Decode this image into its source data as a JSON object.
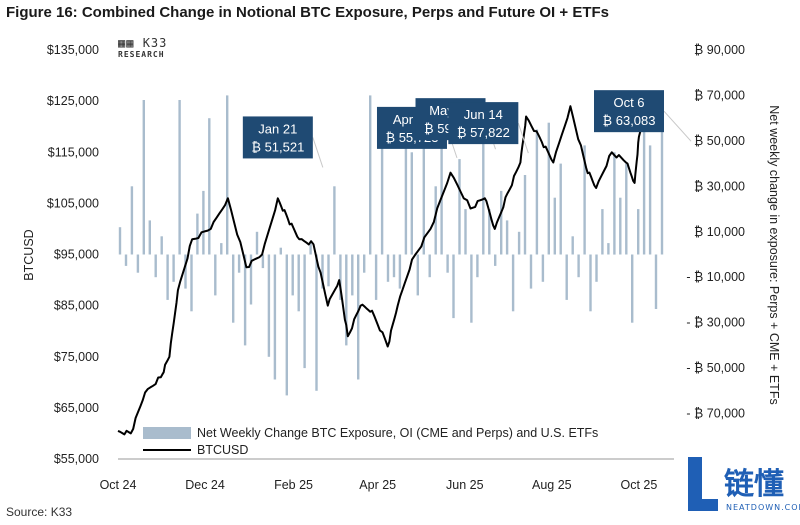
{
  "figure_title": "Figure 16: Combined Change in Notional BTC Exposure, Perps and Future OI + ETFs",
  "source": "Source: K33",
  "logo": {
    "line1": "K33",
    "line2": "RESEARCH"
  },
  "watermark": {
    "chinese": "链懂",
    "url": "NEATDOWN.COM"
  },
  "colors": {
    "bars": "#a9bccd",
    "line": "#000000",
    "callout_bg": "#1f4a73",
    "callout_text": "#ffffff"
  },
  "chart_data": {
    "type": "bar+line",
    "left_axis": {
      "label": "BTCUSD",
      "range": [
        55000,
        135000
      ],
      "ticks": [
        55000,
        65000,
        75000,
        85000,
        95000,
        105000,
        115000,
        125000,
        135000
      ],
      "tick_labels": [
        "$55,000",
        "$65,000",
        "$75,000",
        "$85,000",
        "$95,000",
        "$105,000",
        "$115,000",
        "$125,000",
        "$135,000"
      ]
    },
    "right_axis": {
      "label": "Net weekly change in exposure: Perps + CME + ETFs",
      "range": [
        -90000,
        90000
      ],
      "ticks": [
        -70000,
        -50000,
        -30000,
        -10000,
        10000,
        30000,
        50000,
        70000,
        90000
      ],
      "tick_labels": [
        "- ₿ 70,000",
        "- ₿ 50,000",
        "- ₿ 30,000",
        "- ₿ 10,000",
        "₿ 10,000",
        "₿ 30,000",
        "₿ 50,000",
        "₿ 70,000",
        "₿ 90,000"
      ]
    },
    "x_axis": {
      "range": [
        "2024-10-01",
        "2025-10-20"
      ],
      "tick_labels": [
        "Oct 24",
        "Dec 24",
        "Feb 25",
        "Apr 25",
        "Jun 25",
        "Aug 25",
        "Oct 25"
      ],
      "tick_dates": [
        "2024-10-01",
        "2024-12-01",
        "2025-02-01",
        "2025-04-01",
        "2025-06-01",
        "2025-08-01",
        "2025-10-01"
      ]
    },
    "legend": {
      "position": "bottom-left",
      "entries": [
        "Net Weekly Change BTC Exposure, OI (CME and Perps) and U.S. ETFs",
        "BTCUSD"
      ]
    },
    "grid": false,
    "bar_series": {
      "name": "Net Weekly Change BTC Exposure, OI (CME and Perps) and U.S. ETFs",
      "values": [
        12000,
        -5000,
        30000,
        -8000,
        68000,
        15000,
        -10000,
        8000,
        -20000,
        -12000,
        68000,
        -15000,
        -25000,
        18000,
        28000,
        60000,
        -18000,
        5000,
        70000,
        -30000,
        -8000,
        -40000,
        -22000,
        10000,
        -6000,
        -45000,
        -55000,
        3000,
        -62000,
        -18000,
        -25000,
        -50000,
        5000,
        -60000,
        -15000,
        -14000,
        30000,
        -20000,
        -40000,
        -18000,
        -55000,
        -8000,
        70000,
        -20000,
        62000,
        -12000,
        -10000,
        -15000,
        55000,
        45000,
        -18000,
        64000,
        -10000,
        30000,
        58000,
        -8000,
        -28000,
        42000,
        20000,
        -30000,
        -10000,
        50000,
        20000,
        -5000,
        28000,
        15000,
        -25000,
        10000,
        35000,
        -15000,
        55000,
        -12000,
        58000,
        25000,
        40000,
        -20000,
        8000,
        -10000,
        48000,
        -25000,
        -12000,
        20000,
        5000,
        45000,
        25000,
        40000,
        -30000,
        20000,
        56000,
        48000,
        -24000,
        72000
      ]
    },
    "line_series": {
      "name": "BTCUSD",
      "points": [
        [
          "2024-10-01",
          60500
        ],
        [
          "2024-10-10",
          60000
        ],
        [
          "2024-10-20",
          68000
        ],
        [
          "2024-10-31",
          71000
        ],
        [
          "2024-11-06",
          75000
        ],
        [
          "2024-11-12",
          88000
        ],
        [
          "2024-11-22",
          98000
        ],
        [
          "2024-12-05",
          100000
        ],
        [
          "2024-12-17",
          106000
        ],
        [
          "2024-12-30",
          92500
        ],
        [
          "2025-01-10",
          95000
        ],
        [
          "2025-01-21",
          106000
        ],
        [
          "2025-01-28",
          102000
        ],
        [
          "2025-02-05",
          98000
        ],
        [
          "2025-02-15",
          97000
        ],
        [
          "2025-02-25",
          85000
        ],
        [
          "2025-03-05",
          90000
        ],
        [
          "2025-03-11",
          79000
        ],
        [
          "2025-03-20",
          85000
        ],
        [
          "2025-03-28",
          84000
        ],
        [
          "2025-04-08",
          77000
        ],
        [
          "2025-04-15",
          85000
        ],
        [
          "2025-04-25",
          94000
        ],
        [
          "2025-05-08",
          100000
        ],
        [
          "2025-05-22",
          111000
        ],
        [
          "2025-06-05",
          104000
        ],
        [
          "2025-06-15",
          106000
        ],
        [
          "2025-06-22",
          100000
        ],
        [
          "2025-07-01",
          107000
        ],
        [
          "2025-07-10",
          113000
        ],
        [
          "2025-07-14",
          122000
        ],
        [
          "2025-07-25",
          117000
        ],
        [
          "2025-08-02",
          113000
        ],
        [
          "2025-08-14",
          124000
        ],
        [
          "2025-08-25",
          112000
        ],
        [
          "2025-09-01",
          108000
        ],
        [
          "2025-09-12",
          115000
        ],
        [
          "2025-09-22",
          113000
        ],
        [
          "2025-09-28",
          109000
        ],
        [
          "2025-10-01",
          118000
        ],
        [
          "2025-10-06",
          125000
        ]
      ]
    },
    "annotations": [
      {
        "date_label": "Jan 21",
        "value_label": "₿ 51,521",
        "date": "2025-01-21",
        "value": 51521
      },
      {
        "date_label": "Apr 25",
        "value_label": "₿ 55,723",
        "date": "2025-04-25",
        "value": 55723
      },
      {
        "date_label": "May 22",
        "value_label": "₿ 59,563",
        "date": "2025-05-22",
        "value": 59563
      },
      {
        "date_label": "Jun 14",
        "value_label": "₿ 57,822",
        "date": "2025-06-14",
        "value": 57822
      },
      {
        "date_label": "Oct 6",
        "value_label": "₿ 63,083",
        "date": "2025-10-06",
        "value": 63083
      }
    ]
  }
}
